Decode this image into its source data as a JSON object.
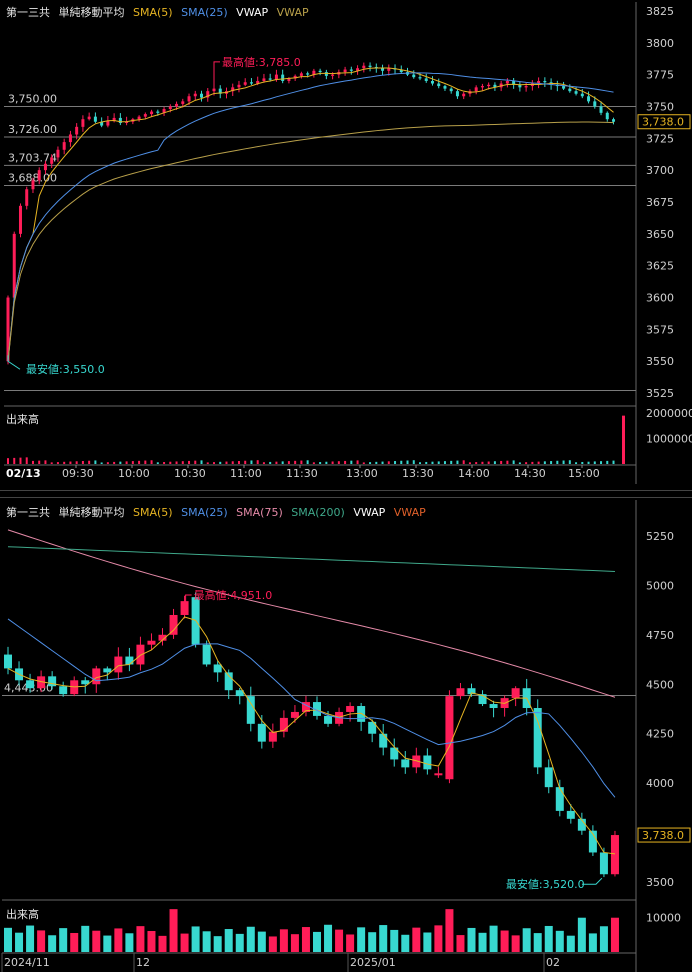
{
  "intraday": {
    "legend": {
      "name": "第一三共",
      "study": "単純移動平均",
      "items": [
        {
          "label": "SMA(5)",
          "color": "#e6b422"
        },
        {
          "label": "SMA(25)",
          "color": "#4f8fe6"
        },
        {
          "label": "VWAP",
          "color": "#ffffff"
        },
        {
          "label": "VWAP",
          "color": "#b8a04a"
        }
      ]
    },
    "volume_label": "出来高",
    "last_price_tag": "3,738.0"
  },
  "daily": {
    "legend": {
      "name": "第一三共",
      "study": "単純移動平均",
      "items": [
        {
          "label": "SMA(5)",
          "color": "#e6b422"
        },
        {
          "label": "SMA(25)",
          "color": "#4f8fe6"
        },
        {
          "label": "SMA(75)",
          "color": "#e58aa8"
        },
        {
          "label": "SMA(200)",
          "color": "#3fa88a"
        },
        {
          "label": "VWAP",
          "color": "#ffffff"
        },
        {
          "label": "VWAP",
          "color": "#e0602a"
        }
      ]
    },
    "volume_label": "出来高",
    "last_price_tag": "3,738.0"
  },
  "colors": {
    "up": "#ff1d58",
    "down": "#38d8d0",
    "grid": "#7a7a7a",
    "axis": "#d0d0d0"
  },
  "chart_data": [
    {
      "type": "candlestick",
      "title": "第一三共 intraday 02/13",
      "ylim": [
        3518,
        3832
      ],
      "yticks": [
        3525,
        3550,
        3575,
        3600,
        3625,
        3650,
        3675,
        3700,
        3725,
        3750,
        3775,
        3800,
        3825
      ],
      "ytick_labels": [
        "3525",
        "3550",
        "3575",
        "3600",
        "3625",
        "3650",
        "3675",
        "3700",
        "3725",
        "3750",
        "3775",
        "3800",
        "3825"
      ],
      "xtick_labels": [
        "02/13",
        "09:30",
        "10:00",
        "10:30",
        "11:00",
        "11:30",
        "13:00",
        "13:30",
        "14:00",
        "14:30",
        "15:00"
      ],
      "hlines": [
        {
          "value": 3750.0,
          "label": "3,750.00"
        },
        {
          "value": 3726.0,
          "label": "3,726.00"
        },
        {
          "value": 3703.74,
          "label": "3,703.74"
        },
        {
          "value": 3688.0,
          "label": "3,688.00"
        },
        {
          "value": 3527.0,
          "label": ""
        }
      ],
      "high_annotation": {
        "label": "最高値:3,785.0",
        "value": 3785.0
      },
      "low_annotation": {
        "label": "最安値:3,550.0",
        "value": 3550.0
      },
      "last_price": 3738.0,
      "close_approx": [
        3600,
        3650,
        3672,
        3685,
        3692,
        3700,
        3705,
        3710,
        3716,
        3722,
        3728,
        3734,
        3740,
        3742,
        3738,
        3735,
        3739,
        3741,
        3737,
        3738,
        3740,
        3742,
        3744,
        3746,
        3745,
        3748,
        3750,
        3752,
        3754,
        3758,
        3760,
        3757,
        3762,
        3764,
        3760,
        3762,
        3765,
        3767,
        3769,
        3768,
        3770,
        3772,
        3771,
        3775,
        3770,
        3772,
        3774,
        3776,
        3775,
        3778,
        3777,
        3774,
        3775,
        3777,
        3779,
        3778,
        3780,
        3782,
        3781,
        3780,
        3778,
        3780,
        3779,
        3777,
        3775,
        3773,
        3772,
        3770,
        3768,
        3766,
        3764,
        3762,
        3758,
        3760,
        3762,
        3765,
        3766,
        3767,
        3765,
        3768,
        3770,
        3767,
        3765,
        3766,
        3768,
        3770,
        3769,
        3767,
        3766,
        3764,
        3762,
        3760,
        3758,
        3754,
        3750,
        3745,
        3740,
        3738
      ],
      "volume_ylim": [
        0,
        2200000
      ],
      "volume_ticks": [
        "1000000",
        "2000000"
      ],
      "series": [
        {
          "name": "SMA(5)"
        },
        {
          "name": "SMA(25)"
        },
        {
          "name": "VWAP"
        }
      ]
    },
    {
      "type": "candlestick",
      "title": "第一三共 daily",
      "ylim": [
        3430,
        5330
      ],
      "yticks": [
        3500,
        3750,
        4000,
        4250,
        4500,
        4750,
        5000,
        5250
      ],
      "ytick_labels": [
        "3500",
        "3750",
        "4000",
        "4250",
        "4500",
        "4750",
        "5000",
        "5250"
      ],
      "xtick_labels": [
        "2024/11",
        "12",
        "2025/01",
        "02"
      ],
      "hlines": [
        {
          "value": 4443.0,
          "label": "4,443.00"
        }
      ],
      "high_annotation": {
        "label": "最高値:4,951.0",
        "value": 4951.0
      },
      "low_annotation": {
        "label": "最安値:3,520.0",
        "value": 3520.0
      },
      "last_price": 3738.0,
      "candles": [
        [
          4650,
          4580
        ],
        [
          4580,
          4520
        ],
        [
          4520,
          4480
        ],
        [
          4480,
          4540
        ],
        [
          4540,
          4490
        ],
        [
          4490,
          4450
        ],
        [
          4450,
          4520
        ],
        [
          4520,
          4500
        ],
        [
          4500,
          4580
        ],
        [
          4580,
          4560
        ],
        [
          4560,
          4640
        ],
        [
          4640,
          4600
        ],
        [
          4600,
          4700
        ],
        [
          4700,
          4720
        ],
        [
          4720,
          4750
        ],
        [
          4750,
          4850
        ],
        [
          4850,
          4920
        ],
        [
          4940,
          4700
        ],
        [
          4700,
          4600
        ],
        [
          4600,
          4560
        ],
        [
          4560,
          4470
        ],
        [
          4470,
          4440
        ],
        [
          4440,
          4300
        ],
        [
          4300,
          4210
        ],
        [
          4210,
          4260
        ],
        [
          4260,
          4330
        ],
        [
          4330,
          4360
        ],
        [
          4360,
          4410
        ],
        [
          4410,
          4340
        ],
        [
          4340,
          4300
        ],
        [
          4300,
          4360
        ],
        [
          4360,
          4390
        ],
        [
          4390,
          4310
        ],
        [
          4310,
          4250
        ],
        [
          4250,
          4180
        ],
        [
          4180,
          4120
        ],
        [
          4120,
          4080
        ],
        [
          4080,
          4140
        ],
        [
          4140,
          4070
        ],
        [
          4050,
          4050
        ],
        [
          4020,
          4440
        ],
        [
          4440,
          4480
        ],
        [
          4480,
          4450
        ],
        [
          4450,
          4400
        ],
        [
          4400,
          4380
        ],
        [
          4380,
          4430
        ],
        [
          4430,
          4480
        ],
        [
          4480,
          4380
        ],
        [
          4380,
          4080
        ],
        [
          4080,
          3980
        ],
        [
          3980,
          3860
        ],
        [
          3860,
          3820
        ],
        [
          3820,
          3760
        ],
        [
          3760,
          3650
        ],
        [
          3650,
          3540
        ],
        [
          3540,
          3738
        ]
      ],
      "volume_ylim": [
        0,
        14000
      ],
      "volume_ticks": [
        "10000"
      ]
    }
  ]
}
